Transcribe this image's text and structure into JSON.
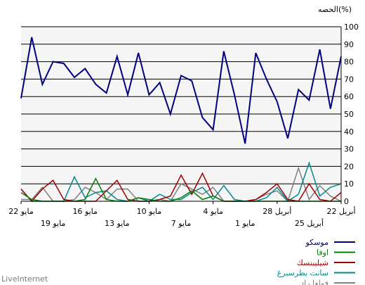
{
  "chart_data": {
    "type": "line",
    "ylabel": "الحصه(%)",
    "ylim": [
      0,
      100
    ],
    "y_ticks": [
      0,
      10,
      20,
      30,
      40,
      50,
      60,
      70,
      80,
      90,
      100
    ],
    "grid": "horizontal",
    "legend_position": "bottom-right",
    "x_labels_row1": [
      "22 مايو",
      "16 مايو",
      "10 مايو",
      "4 مايو",
      "28 أبريل",
      "22 أبريل"
    ],
    "x_labels_row2": [
      "19 مايو",
      "13 مايو",
      "7 مايو",
      "1 مايو",
      "25 أبريل"
    ],
    "x_order": "newest-left",
    "series": [
      {
        "name": "موسكو",
        "color": "#000080",
        "values": [
          59,
          94,
          67,
          80,
          79,
          71,
          76,
          67,
          62,
          83,
          61,
          85,
          61,
          68,
          50,
          72,
          69,
          48,
          41,
          86,
          61,
          33,
          85,
          70,
          57,
          36,
          64,
          58,
          87,
          53,
          83
        ]
      },
      {
        "name": "اوفا",
        "color": "#008000",
        "values": [
          5,
          1,
          0,
          0,
          0,
          0,
          1,
          13,
          1,
          0,
          0,
          2,
          1,
          0,
          0,
          2,
          6,
          1,
          3,
          0,
          0,
          0,
          0,
          0,
          0,
          0,
          0,
          0,
          0,
          0,
          0
        ]
      },
      {
        "name": "شيليبنسك",
        "color": "#a00000",
        "values": [
          7,
          0,
          7,
          12,
          1,
          0,
          0,
          0,
          6,
          12,
          1,
          0,
          0,
          1,
          3,
          15,
          4,
          16,
          3,
          0,
          0,
          0,
          1,
          5,
          10,
          1,
          0,
          10,
          1,
          0,
          5
        ]
      },
      {
        "name": "سانت بطرسبرغ",
        "color": "#008b8b",
        "values": [
          7,
          0,
          0,
          0,
          0,
          14,
          2,
          5,
          6,
          1,
          0,
          2,
          0,
          4,
          1,
          1,
          5,
          8,
          1,
          9,
          1,
          0,
          0,
          2,
          8,
          0,
          4,
          22,
          3,
          8,
          10
        ]
      },
      {
        "name": "فولغا راد",
        "color": "#808080",
        "values": [
          1,
          1,
          8,
          0,
          0,
          1,
          8,
          5,
          1,
          7,
          7,
          0,
          0,
          1,
          0,
          10,
          7,
          4,
          8,
          0,
          0,
          0,
          1,
          4,
          6,
          0,
          19,
          1,
          9,
          3,
          0
        ]
      }
    ]
  },
  "brand": "LiveInternet"
}
